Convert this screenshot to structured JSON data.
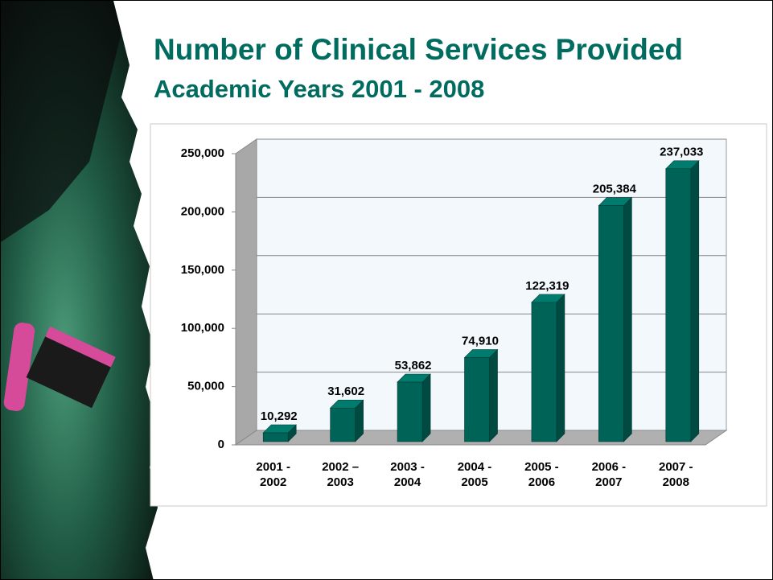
{
  "chart_data": {
    "type": "bar3d",
    "title": "Number of Clinical Services Provided",
    "subtitle": "Academic Years 2001 - 2008",
    "categories": [
      "2001 - 2002",
      "2002 – 2003",
      "2003 - 2004",
      "2004 - 2005",
      "2005 - 2006",
      "2006 - 2007",
      "2007 - 2008"
    ],
    "values": [
      10292,
      31602,
      53862,
      74910,
      122319,
      205384,
      237033
    ],
    "value_labels": [
      "10,292",
      "31,602",
      "53,862",
      "74,910",
      "122,319",
      "205,384",
      "237,033"
    ],
    "color": "#006358",
    "ylim": [
      0,
      250000
    ],
    "yticks": [
      0,
      {
        "value": 50000,
        "label": "50,000"
      },
      {
        "value": 100000,
        "label": "100,000"
      },
      {
        "value": 150000,
        "label": "150,000"
      },
      {
        "value": 200000,
        "label": "200,000"
      },
      {
        "value": 250000,
        "label": "250,000"
      }
    ],
    "grid": true
  }
}
